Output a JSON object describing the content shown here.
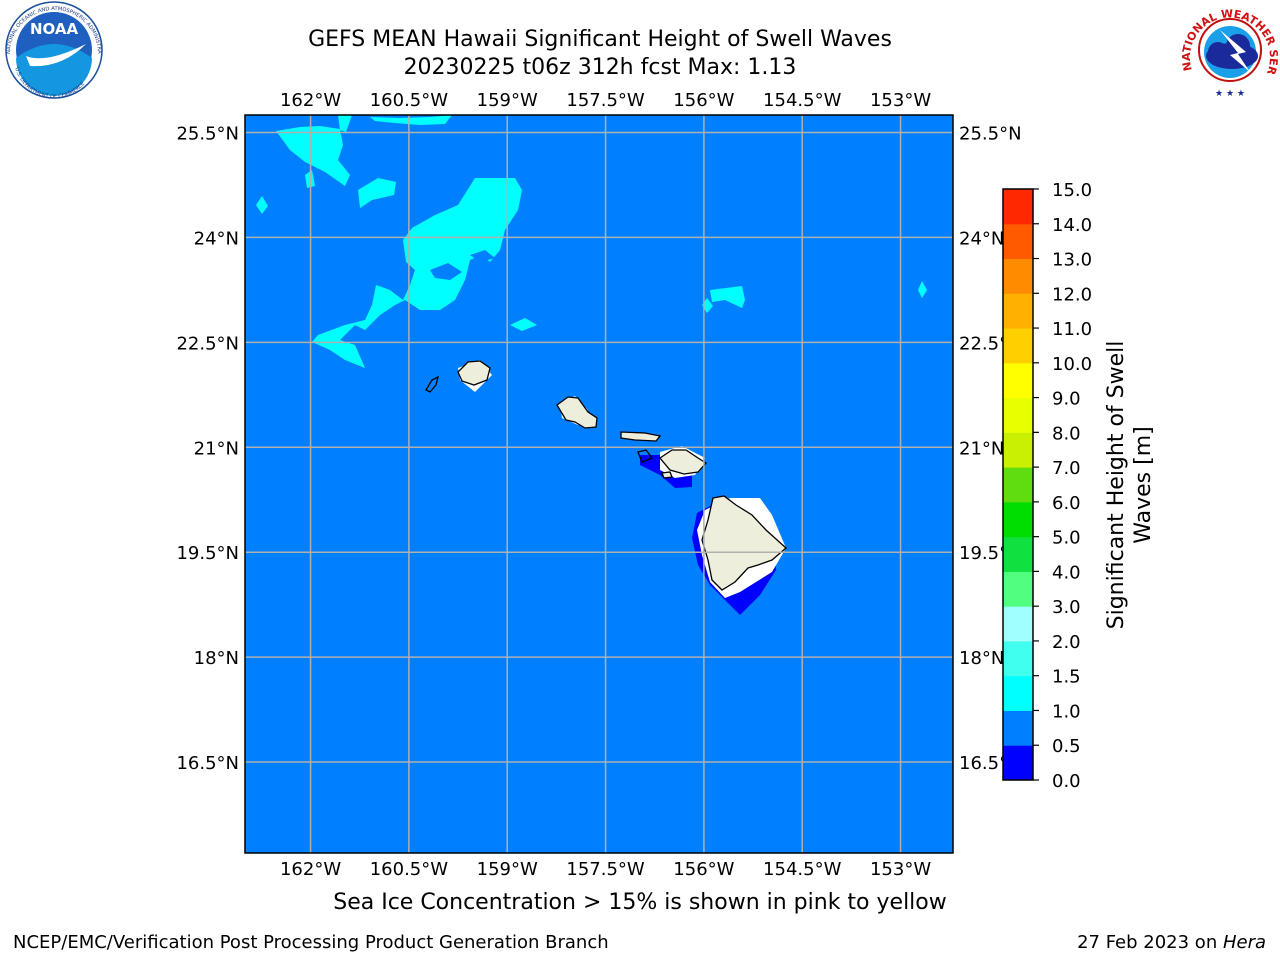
{
  "title": {
    "line1": "GEFS MEAN Hawaii Significant Height of Swell Waves",
    "line2": "20230225 t06z 312h fcst   Max: 1.13"
  },
  "map": {
    "lon_ticks": [
      "162°W",
      "160.5°W",
      "159°W",
      "157.5°W",
      "156°W",
      "154.5°W",
      "153°W"
    ],
    "lat_ticks": [
      "25.5°N",
      "24°N",
      "22.5°N",
      "21°N",
      "19.5°N",
      "18°N",
      "16.5°N"
    ],
    "lon_values": [
      -162,
      -160.5,
      -159,
      -157.5,
      -156,
      -154.5,
      -153
    ],
    "lat_values": [
      25.5,
      24,
      22.5,
      21,
      19.5,
      18,
      16.5
    ],
    "extent": {
      "lon": [
        -163,
        -152.2
      ],
      "lat": [
        15.2,
        25.75
      ]
    },
    "ocean_color": "#0080ff",
    "land_color": "#eeeedd"
  },
  "colorbar": {
    "label_line1": "Significant Height of Swell",
    "label_line2": "Waves [m]",
    "ticks": [
      "0.0",
      "0.5",
      "1.0",
      "1.5",
      "2.0",
      "3.0",
      "4.0",
      "5.0",
      "6.0",
      "7.0",
      "8.0",
      "9.0",
      "10.0",
      "11.0",
      "12.0",
      "13.0",
      "14.0",
      "15.0"
    ],
    "colors": [
      "#0000ff",
      "#0080ff",
      "#00ffff",
      "#40ffee",
      "#a0ffff",
      "#50ff80",
      "#10e040",
      "#00dd00",
      "#60dd10",
      "#c8f000",
      "#e8ff00",
      "#ffff00",
      "#ffd000",
      "#ffb000",
      "#ff8c00",
      "#ff5a00",
      "#ff2800"
    ]
  },
  "caption": "Sea Ice Concentration > 15% is shown in pink to yellow",
  "footer": {
    "left": "NCEP/EMC/Verification Post Processing Product Generation Branch",
    "right_date": "27 Feb 2023 on ",
    "right_machine": "Hera"
  },
  "logos": {
    "noaa_text": "NOAA",
    "noaa_ring_top": "NATIONAL OCEANIC AND ATMOSPHERIC ADMINISTRATION",
    "noaa_ring_bottom": "U.S. DEPARTMENT OF COMMERCE",
    "nws_ring": "NATIONAL WEATHER SERVICE"
  }
}
